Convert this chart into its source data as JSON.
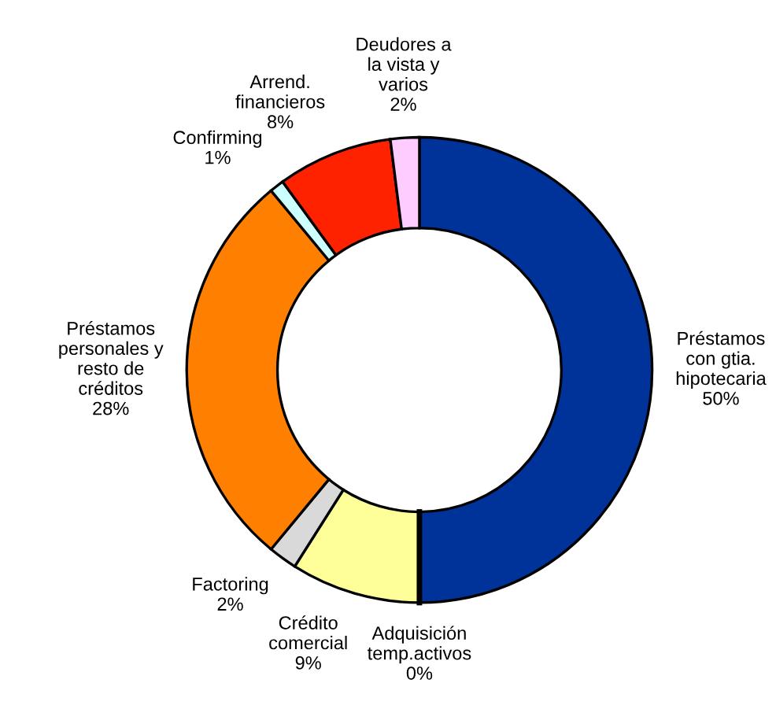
{
  "chart_data": {
    "type": "donut",
    "categories": [
      "Préstamos\ncon gtia.\nhipotecaria",
      "Adquisición\ntemp.activos",
      "Crédito\ncomercial",
      "Factoring",
      "Préstamos\npersonales y\nresto de\ncréditos",
      "Confirming",
      "Arrend.\nfinancieros",
      "Deudores a\nla vista y\nvarios"
    ],
    "values": [
      50,
      0,
      9,
      2,
      28,
      1,
      8,
      2
    ],
    "value_labels": [
      "50%",
      "0%",
      "9%",
      "2%",
      "28%",
      "1%",
      "8%",
      "2%"
    ],
    "colors": [
      "#003399",
      "#000000",
      "#ffff99",
      "#d9d9d9",
      "#ff8000",
      "#ccffff",
      "#ff2200",
      "#ffccff"
    ]
  }
}
